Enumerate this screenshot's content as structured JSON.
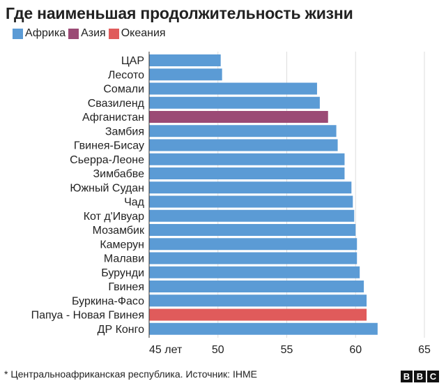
{
  "title": "Где наименьшая продолжительность жизни",
  "legend": [
    {
      "label": "Африка",
      "color": "#5b9bd5"
    },
    {
      "label": "Азия",
      "color": "#9b4a75"
    },
    {
      "label": "Океания",
      "color": "#e05b5b"
    }
  ],
  "footnote": "* Центральноафриканская республика. Источник: IHME",
  "brand": [
    "B",
    "B",
    "C"
  ],
  "chart_data": {
    "type": "bar",
    "orientation": "horizontal",
    "categories": [
      "ЦАР",
      "Лесото",
      "Сомали",
      "Свазиленд",
      "Афганистан",
      "Замбия",
      "Гвинея-Бисау",
      "Сьерра-Леоне",
      "Зимбабве",
      "Южный Судан",
      "Чад",
      "Кот д'Ивуар",
      "Мозамбик",
      "Камерун",
      "Малави",
      "Бурунди",
      "Гвинея",
      "Буркина-Фасо",
      "Папуа - Новая Гвинея",
      "ДР Конго"
    ],
    "values": [
      50.2,
      50.3,
      57.2,
      57.4,
      58.0,
      58.6,
      58.7,
      59.2,
      59.2,
      59.7,
      59.8,
      59.9,
      60.0,
      60.1,
      60.1,
      60.3,
      60.6,
      60.8,
      60.8,
      61.6
    ],
    "region": [
      "Африка",
      "Африка",
      "Африка",
      "Африка",
      "Азия",
      "Африка",
      "Африка",
      "Африка",
      "Африка",
      "Африка",
      "Африка",
      "Африка",
      "Африка",
      "Африка",
      "Африка",
      "Африка",
      "Африка",
      "Африка",
      "Океания",
      "Африка"
    ],
    "xlim": [
      45,
      65
    ],
    "ticks": [
      45,
      50,
      55,
      60,
      65
    ],
    "tick_labels": [
      "45 лет",
      "50",
      "55",
      "60",
      "65"
    ],
    "grid": true
  }
}
